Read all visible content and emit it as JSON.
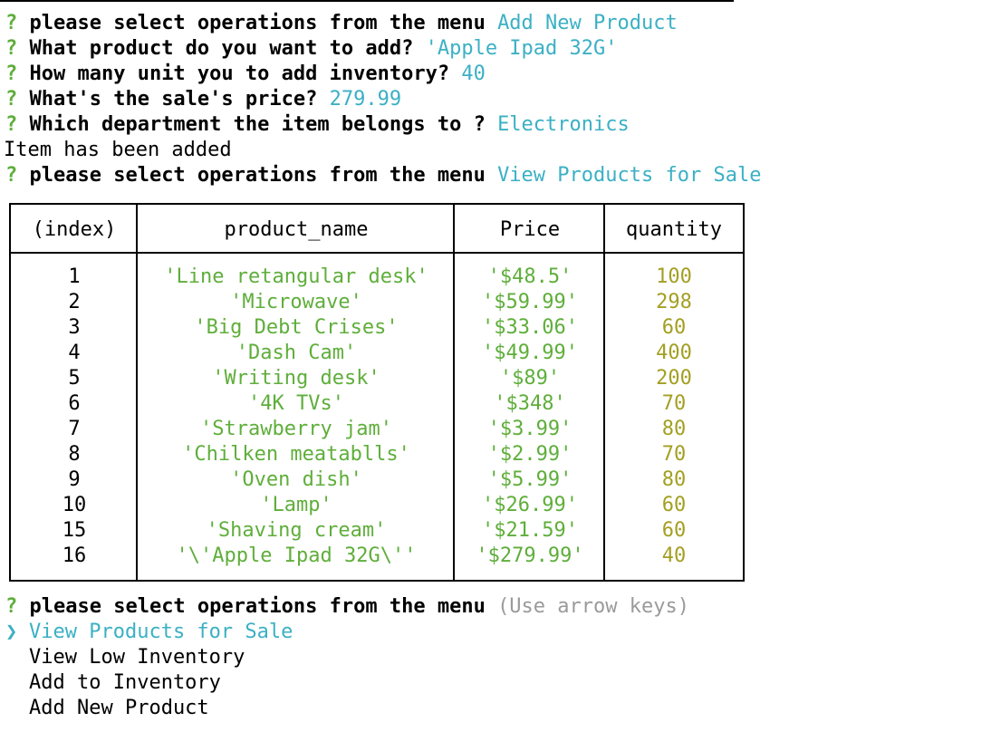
{
  "prompt_symbol": "?",
  "history": [
    {
      "text": " please select operations from the menu ",
      "answer": "Add New Product",
      "indent": true
    },
    {
      "text": " What product do you want to add? ",
      "answer": "'Apple Ipad 32G'",
      "indent": true
    },
    {
      "text": " How many unit you to add inventory? ",
      "answer": "40",
      "indent": true
    },
    {
      "text": " What's the sale's price? ",
      "answer": "279.99",
      "indent": true
    },
    {
      "text": " Which department the item belongs to ? ",
      "answer": "Electronics",
      "indent": false
    }
  ],
  "status_message": "Item has been added",
  "second_prompt": {
    "text": " please select operations from the menu ",
    "answer": "View Products for Sale"
  },
  "table": {
    "headers": [
      "(index)",
      "product_name",
      "Price",
      "quantity"
    ],
    "rows": [
      {
        "index": "1",
        "name": "'Line retangular desk'",
        "price": "'$48.5'",
        "qty": "100"
      },
      {
        "index": "2",
        "name": "'Microwave'",
        "price": "'$59.99'",
        "qty": "298"
      },
      {
        "index": "3",
        "name": "'Big Debt Crises'",
        "price": "'$33.06'",
        "qty": "60"
      },
      {
        "index": "4",
        "name": "'Dash Cam'",
        "price": "'$49.99'",
        "qty": "400"
      },
      {
        "index": "5",
        "name": "'Writing desk'",
        "price": "'$89'",
        "qty": "200"
      },
      {
        "index": "6",
        "name": "'4K TVs'",
        "price": "'$348'",
        "qty": "70"
      },
      {
        "index": "7",
        "name": "'Strawberry jam'",
        "price": "'$3.99'",
        "qty": "80"
      },
      {
        "index": "8",
        "name": "'Chilken meatablls'",
        "price": "'$2.99'",
        "qty": "70"
      },
      {
        "index": "9",
        "name": "'Oven dish'",
        "price": "'$5.99'",
        "qty": "80"
      },
      {
        "index": "10",
        "name": "'Lamp'",
        "price": "'$26.99'",
        "qty": "60"
      },
      {
        "index": "15",
        "name": "'Shaving cream'",
        "price": "'$21.59'",
        "qty": "60"
      },
      {
        "index": "16",
        "name": "'\\'Apple Ipad 32G\\''",
        "price": "'$279.99'",
        "qty": "40"
      }
    ]
  },
  "menu_prompt": {
    "text": " please select operations from the menu ",
    "hint": "(Use arrow keys)"
  },
  "menu": {
    "pointer": "❯",
    "items": [
      "View Products for Sale",
      "View Low Inventory",
      "Add to Inventory",
      "Add New Product"
    ],
    "selected_index": 0
  },
  "colors": {
    "prompt": "#5fae3b",
    "answer": "#3bb0c4",
    "string": "#5fae3b",
    "number": "#a39f23",
    "hint": "#9a9a9a"
  }
}
